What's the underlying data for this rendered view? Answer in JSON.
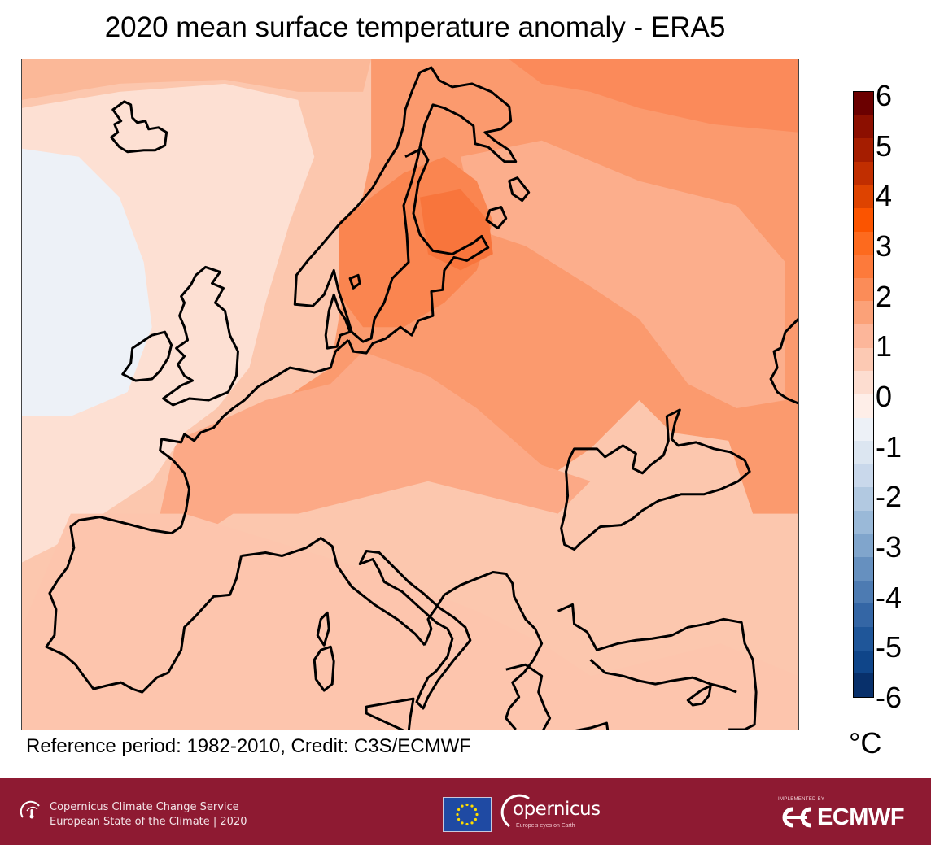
{
  "title": "2020 mean surface temperature anomaly - ERA5",
  "credit": "Reference period: 1982-2010, Credit: C3S/ECMWF",
  "map": {
    "region": "Europe",
    "variable": "mean surface temperature anomaly",
    "year": "2020",
    "dataset": "ERA5",
    "reference_period": "1982-2010",
    "approx_anomalies_degC": {
      "Fennoscandia / Baltic (max)": 3.5,
      "Northern Russia / Barents coast": 3.0,
      "Eastern Europe / Western Russia": 2.5,
      "Central Europe": 2.0,
      "Iberia": 1.0,
      "Mediterranean Sea": 1.0,
      "British Isles": 1.2,
      "North Atlantic (west of Ireland)": -0.2,
      "Iceland interior": -0.2,
      "Norwegian Sea": 0.3
    }
  },
  "colorbar": {
    "unit": "°C",
    "min": -6,
    "max": 6,
    "step": 0.5,
    "ticks": [
      "6",
      "5",
      "4",
      "3",
      "2",
      "1",
      "0",
      "-1",
      "-2",
      "-3",
      "-4",
      "-5",
      "-6"
    ],
    "colors_top_to_bottom": [
      "#6b0000",
      "#8c0f00",
      "#a51d00",
      "#c12e00",
      "#de4300",
      "#fb5400",
      "#fd6a1e",
      "#fd7a3b",
      "#fb8c58",
      "#fba178",
      "#fcb69a",
      "#fcc9b3",
      "#fdddd0",
      "#feeee8",
      "#edf1f7",
      "#dce6f1",
      "#c9d8eb",
      "#b2c9e1",
      "#9ab9d8",
      "#80a5cc",
      "#6690bf",
      "#4d7bb2",
      "#3466a5",
      "#1f5699",
      "#0f4589",
      "#08306b"
    ]
  },
  "footer": {
    "c3s_line1": "Copernicus Climate Change Service",
    "c3s_line2": "European State of the Climate | 2020",
    "copernicus_word": "opernicus",
    "copernicus_c": "C",
    "copernicus_tagline": "Europe's eyes on Earth",
    "ecmwf_small": "IMPLEMENTED BY",
    "ecmwf_word": "ECMWF",
    "background_color": "#8e1a32"
  }
}
